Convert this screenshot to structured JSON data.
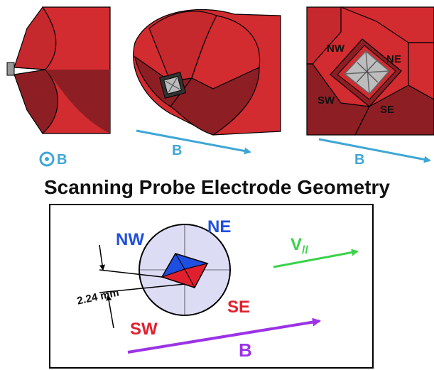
{
  "title": "Scanning Probe Electrode Geometry",
  "colors": {
    "probe_red": "#d22b30",
    "probe_dark": "#8d1f24",
    "field_arrow": "#3fa6d6",
    "nw_label": "#1f4fe0",
    "ne_label": "#1f4fe0",
    "sw_label": "#e0202e",
    "se_label": "#e0202e",
    "vpar_color": "#3ad24a",
    "b_arrow_bottom": "#9b33e6",
    "circle_fill": "#dcdcf5",
    "electrode_blue": "#1f4fe0",
    "electrode_red": "#e0202e"
  },
  "top_views": {
    "view1_b_label": "B",
    "view2_b_label": "B",
    "view3_b_label": "B",
    "view3_electrodes": {
      "nw": "NW",
      "ne": "NE",
      "sw": "SW",
      "se": "SE"
    }
  },
  "schematic": {
    "nw": "NW",
    "ne": "NE",
    "sw": "SW",
    "se": "SE",
    "dimension": "2.24 mm",
    "v_parallel_main": "V",
    "v_parallel_sub": "//",
    "b_label": "B"
  }
}
